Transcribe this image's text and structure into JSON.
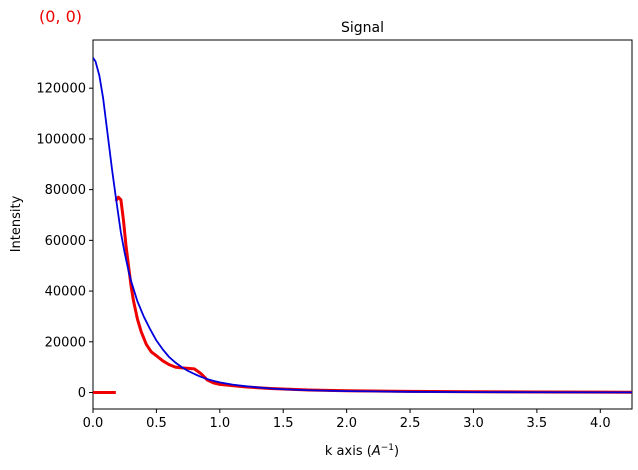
{
  "corner_label": "(0, 0)",
  "colors": {
    "measured": "#ee0000",
    "fit": "#0000dd",
    "corner": "#ee0000"
  },
  "chart_data": {
    "type": "line",
    "title": "Signal",
    "xlabel": "k axis",
    "xlabel_unit": "A",
    "xlabel_exp": "−1",
    "ylabel": "Intensity",
    "xlim": [
      0,
      4.25
    ],
    "ylim": [
      -6500,
      139000
    ],
    "grid": false,
    "x_ticks": [
      0.0,
      0.5,
      1.0,
      1.5,
      2.0,
      2.5,
      3.0,
      3.5,
      4.0
    ],
    "x_tick_labels": [
      "0.0",
      "0.5",
      "1.0",
      "1.5",
      "2.0",
      "2.5",
      "3.0",
      "3.5",
      "4.0"
    ],
    "y_ticks": [
      0,
      20000,
      40000,
      60000,
      80000,
      100000,
      120000
    ],
    "y_tick_labels": [
      "0",
      "20000",
      "40000",
      "60000",
      "80000",
      "100000",
      "120000"
    ],
    "series": [
      {
        "key": "measured",
        "style": "thick",
        "segments": [
          {
            "x": [
              0.0,
              0.18
            ],
            "y": [
              0,
              0
            ]
          },
          {
            "x": [
              0.18,
              0.2,
              0.22,
              0.24,
              0.26,
              0.28,
              0.3,
              0.32,
              0.35,
              0.38,
              0.42,
              0.46,
              0.5,
              0.55,
              0.6,
              0.65,
              0.7,
              0.75,
              0.8,
              0.85,
              0.9,
              0.95,
              1.0,
              1.1,
              1.2,
              1.3,
              1.4,
              1.5,
              1.6,
              1.7,
              1.8,
              1.9,
              2.0,
              2.1,
              2.2,
              2.5,
              3.0,
              3.5,
              4.0,
              4.25
            ],
            "y": [
              75500,
              77000,
              76000,
              68000,
              58000,
              50000,
              42000,
              36000,
              29000,
              24000,
              19000,
              16000,
              14500,
              12500,
              11000,
              10000,
              9700,
              9500,
              9300,
              7500,
              5000,
              3800,
              3200,
              2700,
              2200,
              1900,
              1600,
              1400,
              1200,
              1000,
              900,
              800,
              700,
              650,
              600,
              450,
              300,
              200,
              150,
              120
            ]
          }
        ]
      },
      {
        "key": "fit",
        "style": "thin",
        "segments": [
          {
            "x": [
              0.0,
              0.02,
              0.05,
              0.08,
              0.1,
              0.12,
              0.15,
              0.18,
              0.2,
              0.22,
              0.25,
              0.28,
              0.3,
              0.35,
              0.4,
              0.45,
              0.5,
              0.55,
              0.6,
              0.65,
              0.7,
              0.75,
              0.8,
              0.85,
              0.9,
              0.95,
              1.0,
              1.1,
              1.2,
              1.3,
              1.4,
              1.5,
              1.7,
              2.0,
              2.5,
              3.0,
              3.5,
              4.0,
              4.25
            ],
            "y": [
              132000,
              130500,
              125000,
              116000,
              108000,
              100000,
              88000,
              77000,
              70000,
              63000,
              55000,
              48000,
              44000,
              36000,
              30000,
              25000,
              20500,
              17000,
              14000,
              11800,
              10000,
              8500,
              7300,
              6200,
              5300,
              4600,
              4000,
              3100,
              2500,
              2000,
              1600,
              1300,
              900,
              550,
              280,
              160,
              100,
              70,
              55
            ]
          }
        ]
      }
    ]
  }
}
